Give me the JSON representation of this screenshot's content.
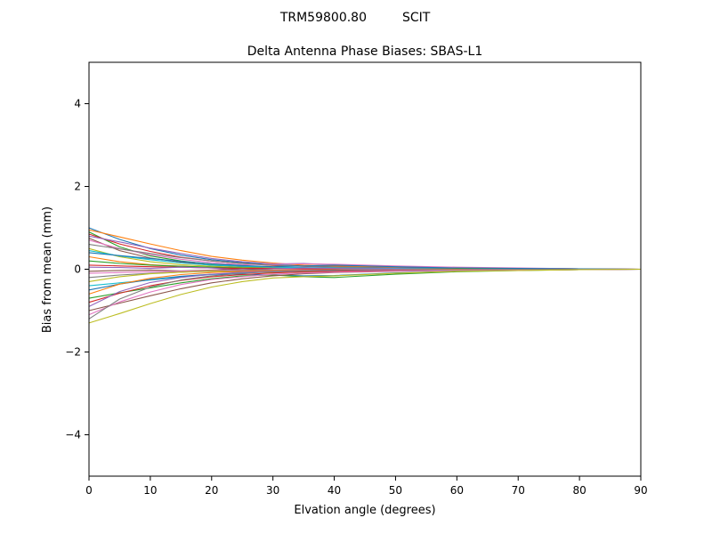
{
  "figure": {
    "suptitle_left": "TRM59800.80",
    "suptitle_right": "SCIT"
  },
  "chart_data": {
    "type": "line",
    "suptitle": "TRM59800.80     SCIT",
    "title": "Delta Antenna Phase Biases: SBAS-L1",
    "xlabel": "Elvation angle (degrees)",
    "ylabel": "Bias from mean (mm)",
    "xlim": [
      0,
      90
    ],
    "ylim": [
      -5,
      5
    ],
    "x_ticks": [
      0,
      10,
      20,
      30,
      40,
      50,
      60,
      70,
      80,
      90
    ],
    "y_ticks": [
      -4,
      -2,
      0,
      2,
      4
    ],
    "grid": false,
    "legend": "none",
    "x": [
      0,
      5,
      10,
      15,
      20,
      25,
      30,
      35,
      40,
      50,
      60,
      70,
      80,
      90
    ],
    "series": [
      {
        "name": "line-01",
        "color": "#1f77b4",
        "values": [
          1.0,
          0.72,
          0.5,
          0.34,
          0.23,
          0.16,
          0.11,
          0.08,
          0.06,
          0.04,
          0.03,
          0.02,
          0.01,
          0.0
        ]
      },
      {
        "name": "line-02",
        "color": "#ff7f0e",
        "values": [
          0.95,
          0.78,
          0.61,
          0.45,
          0.31,
          0.22,
          0.15,
          0.1,
          0.08,
          0.05,
          0.03,
          0.02,
          0.01,
          0.0
        ]
      },
      {
        "name": "line-03",
        "color": "#2ca02c",
        "values": [
          0.9,
          0.54,
          0.32,
          0.2,
          0.12,
          0.07,
          0.05,
          0.03,
          0.02,
          0.01,
          0.01,
          0.0,
          0.0,
          0.0
        ]
      },
      {
        "name": "line-04",
        "color": "#d62728",
        "values": [
          0.85,
          0.61,
          0.43,
          0.29,
          0.2,
          0.14,
          0.09,
          0.07,
          0.05,
          0.03,
          0.03,
          0.02,
          0.01,
          0.0
        ]
      },
      {
        "name": "line-05",
        "color": "#9467bd",
        "values": [
          0.8,
          0.66,
          0.51,
          0.38,
          0.26,
          0.18,
          0.13,
          0.14,
          0.11,
          0.07,
          0.04,
          0.02,
          0.01,
          0.0
        ]
      },
      {
        "name": "line-06",
        "color": "#8c564b",
        "values": [
          0.75,
          0.45,
          0.27,
          0.17,
          0.1,
          0.06,
          0.04,
          0.02,
          0.02,
          0.01,
          0.01,
          0.0,
          0.0,
          0.0
        ]
      },
      {
        "name": "line-07",
        "color": "#e377c2",
        "values": [
          0.7,
          0.5,
          0.35,
          0.24,
          0.16,
          0.11,
          0.12,
          0.13,
          0.12,
          0.08,
          0.05,
          0.03,
          0.01,
          0.0
        ]
      },
      {
        "name": "line-08",
        "color": "#7f7f7f",
        "values": [
          0.6,
          0.49,
          0.38,
          0.28,
          0.2,
          0.14,
          0.1,
          0.07,
          0.05,
          0.03,
          0.02,
          0.01,
          0.01,
          0.0
        ]
      },
      {
        "name": "line-09",
        "color": "#bcbd22",
        "values": [
          0.5,
          0.3,
          0.18,
          0.11,
          0.07,
          0.04,
          0.03,
          0.02,
          0.01,
          0.01,
          0.0,
          0.0,
          0.0,
          0.0
        ]
      },
      {
        "name": "line-10",
        "color": "#17becf",
        "values": [
          0.45,
          0.32,
          0.23,
          0.15,
          0.1,
          0.07,
          0.05,
          0.04,
          0.03,
          0.02,
          0.01,
          0.01,
          0.0,
          0.0
        ]
      },
      {
        "name": "line-11",
        "color": "#1f77b4",
        "values": [
          0.4,
          0.33,
          0.26,
          0.19,
          0.13,
          0.09,
          0.06,
          0.08,
          0.1,
          0.06,
          0.03,
          0.02,
          0.01,
          0.0
        ]
      },
      {
        "name": "line-12",
        "color": "#ff7f0e",
        "values": [
          0.3,
          0.18,
          0.11,
          0.07,
          0.04,
          0.02,
          0.02,
          0.01,
          0.01,
          0.0,
          0.0,
          0.0,
          0.0,
          0.0
        ]
      },
      {
        "name": "line-13",
        "color": "#2ca02c",
        "values": [
          0.2,
          0.14,
          0.1,
          0.07,
          0.05,
          0.03,
          0.02,
          0.02,
          0.01,
          0.01,
          0.01,
          0.0,
          0.0,
          0.0
        ]
      },
      {
        "name": "line-14",
        "color": "#d62728",
        "values": [
          0.1,
          0.08,
          0.06,
          0.05,
          0.03,
          0.02,
          0.02,
          0.01,
          0.01,
          0.0,
          0.0,
          0.0,
          0.0,
          0.0
        ]
      },
      {
        "name": "line-15",
        "color": "#9467bd",
        "values": [
          0.05,
          0.04,
          0.02,
          0.05,
          0.03,
          -0.02,
          0.01,
          0.03,
          0.02,
          0.01,
          0.0,
          0.0,
          0.0,
          0.0
        ]
      },
      {
        "name": "line-16",
        "color": "#8c564b",
        "values": [
          -0.05,
          -0.03,
          -0.02,
          -0.04,
          -0.02,
          0.01,
          -0.02,
          -0.03,
          -0.01,
          -0.01,
          0.0,
          0.0,
          0.0,
          0.0
        ]
      },
      {
        "name": "line-17",
        "color": "#e377c2",
        "values": [
          -0.1,
          -0.08,
          -0.06,
          -0.05,
          -0.03,
          -0.02,
          -0.02,
          -0.01,
          -0.01,
          0.0,
          0.0,
          0.0,
          0.0,
          0.0
        ]
      },
      {
        "name": "line-18",
        "color": "#7f7f7f",
        "values": [
          -0.2,
          -0.14,
          -0.1,
          -0.07,
          -0.05,
          -0.03,
          -0.02,
          -0.02,
          -0.01,
          -0.01,
          0.0,
          0.0,
          0.0,
          0.0
        ]
      },
      {
        "name": "line-19",
        "color": "#bcbd22",
        "values": [
          -0.3,
          -0.18,
          -0.11,
          -0.07,
          -0.04,
          -0.07,
          -0.08,
          -0.07,
          -0.05,
          -0.03,
          -0.01,
          0.0,
          0.0,
          0.0
        ]
      },
      {
        "name": "line-20",
        "color": "#17becf",
        "values": [
          -0.4,
          -0.33,
          -0.26,
          -0.19,
          -0.13,
          -0.09,
          -0.06,
          -0.04,
          -0.03,
          -0.02,
          -0.01,
          -0.01,
          0.0,
          0.0
        ]
      },
      {
        "name": "line-21",
        "color": "#1f77b4",
        "values": [
          -0.5,
          -0.36,
          -0.25,
          -0.17,
          -0.12,
          -0.12,
          -0.14,
          -0.16,
          -0.15,
          -0.09,
          -0.05,
          -0.02,
          -0.01,
          0.0
        ]
      },
      {
        "name": "line-22",
        "color": "#ff7f0e",
        "values": [
          -0.6,
          -0.36,
          -0.22,
          -0.13,
          -0.08,
          -0.05,
          -0.03,
          -0.02,
          -0.01,
          -0.01,
          0.0,
          0.0,
          0.0,
          0.0
        ]
      },
      {
        "name": "line-23",
        "color": "#2ca02c",
        "values": [
          -0.7,
          -0.57,
          -0.45,
          -0.33,
          -0.23,
          -0.16,
          -0.14,
          -0.18,
          -0.2,
          -0.12,
          -0.06,
          -0.03,
          -0.01,
          0.0
        ]
      },
      {
        "name": "line-24",
        "color": "#d62728",
        "values": [
          -0.8,
          -0.58,
          -0.4,
          -0.27,
          -0.18,
          -0.13,
          -0.09,
          -0.06,
          -0.05,
          -0.03,
          -0.02,
          -0.02,
          -0.01,
          0.0
        ]
      },
      {
        "name": "line-25",
        "color": "#9467bd",
        "values": [
          -0.9,
          -0.54,
          -0.32,
          -0.2,
          -0.12,
          -0.07,
          -0.05,
          -0.03,
          -0.02,
          -0.01,
          -0.01,
          0.0,
          0.0,
          0.0
        ]
      },
      {
        "name": "line-26",
        "color": "#8c564b",
        "values": [
          -1.0,
          -0.82,
          -0.64,
          -0.47,
          -0.33,
          -0.23,
          -0.16,
          -0.11,
          -0.08,
          -0.05,
          -0.03,
          -0.02,
          -0.01,
          0.0
        ]
      },
      {
        "name": "line-27",
        "color": "#e377c2",
        "values": [
          -1.1,
          -0.79,
          -0.55,
          -0.37,
          -0.25,
          -0.18,
          -0.12,
          -0.09,
          -0.07,
          -0.04,
          -0.03,
          -0.02,
          -0.01,
          0.0
        ]
      },
      {
        "name": "line-28",
        "color": "#7f7f7f",
        "values": [
          -1.2,
          -0.72,
          -0.43,
          -0.26,
          -0.16,
          -0.1,
          -0.06,
          -0.04,
          -0.02,
          -0.01,
          -0.01,
          0.0,
          0.0,
          0.0
        ]
      },
      {
        "name": "line-29",
        "color": "#bcbd22",
        "values": [
          -1.3,
          -1.07,
          -0.83,
          -0.61,
          -0.43,
          -0.3,
          -0.21,
          -0.18,
          -0.16,
          -0.1,
          -0.05,
          -0.03,
          -0.01,
          0.0
        ]
      }
    ]
  }
}
